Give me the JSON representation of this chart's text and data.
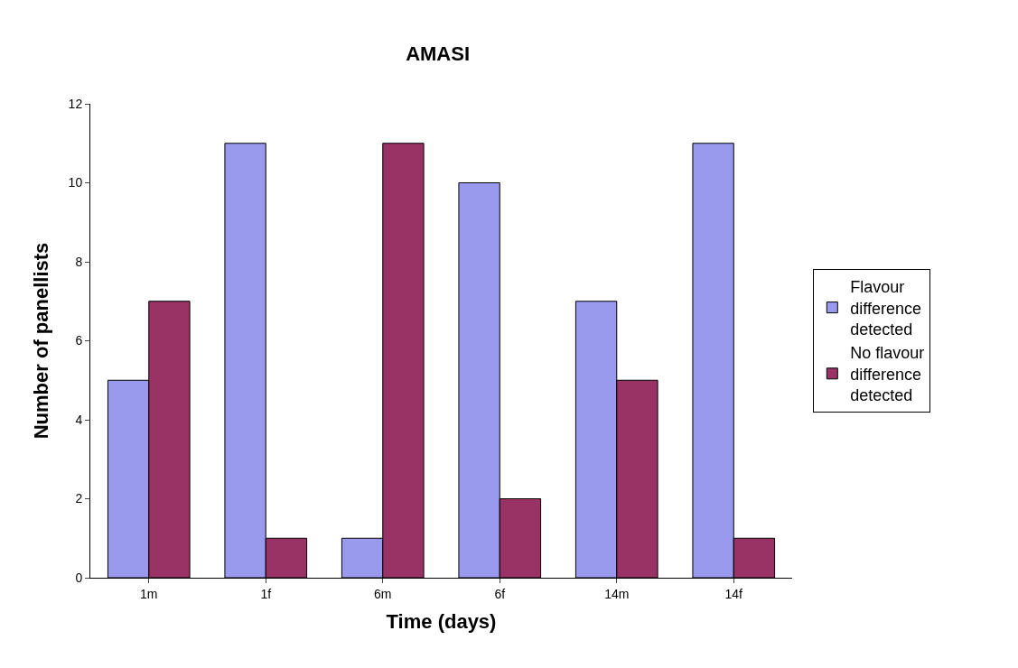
{
  "chart_data": {
    "type": "bar",
    "title": "AMASI",
    "xlabel": "Time (days)",
    "ylabel": "Number of panellists",
    "categories": [
      "1m",
      "1f",
      "6m",
      "6f",
      "14m",
      "14f"
    ],
    "series": [
      {
        "name": "Flavour difference detected",
        "color": "#9999ee",
        "values": [
          5,
          11,
          1,
          10,
          7,
          11
        ]
      },
      {
        "name": "No flavour difference detected",
        "color": "#993366",
        "values": [
          7,
          1,
          11,
          2,
          5,
          1
        ]
      }
    ],
    "ylim": [
      0,
      12
    ],
    "yticks": [
      0,
      2,
      4,
      6,
      8,
      10,
      12
    ],
    "grid": false,
    "legend": "right"
  }
}
